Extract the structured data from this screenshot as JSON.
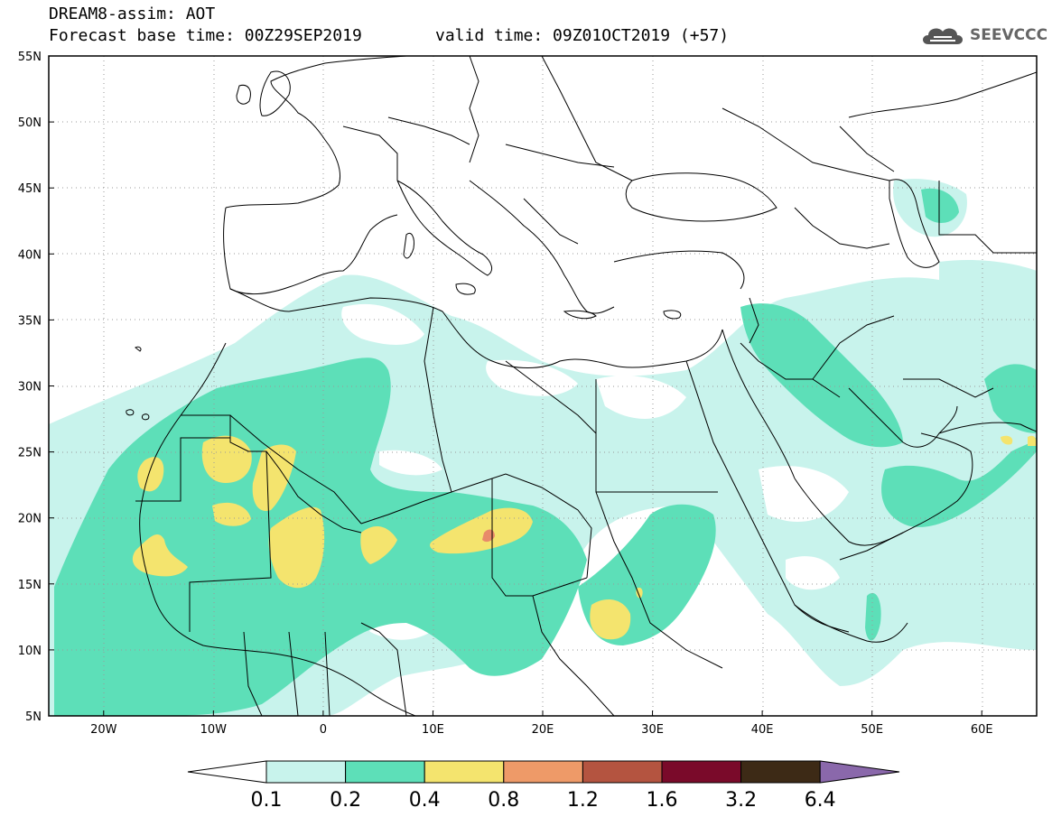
{
  "header": {
    "title": "DREAM8-assim: AOT",
    "base_time": "Forecast base time: 00Z29SEP2019",
    "valid_time": "valid time: 09Z01OCT2019 (+57)"
  },
  "logo": {
    "text": "SEEVCCC",
    "icon": "cloud-icon"
  },
  "map": {
    "lat_labels": [
      "55N",
      "50N",
      "45N",
      "40N",
      "35N",
      "30N",
      "25N",
      "20N",
      "15N",
      "10N",
      "5N"
    ],
    "lon_labels": [
      "20W",
      "10W",
      "0",
      "10E",
      "20E",
      "30E",
      "40E",
      "50E",
      "60E"
    ],
    "lon_range": [
      -25,
      65
    ],
    "lat_range": [
      5,
      55
    ],
    "grid": "dotted"
  },
  "legend": {
    "labels": [
      "0.1",
      "0.2",
      "0.4",
      "0.8",
      "1.2",
      "1.6",
      "3.2",
      "6.4"
    ],
    "colors": [
      "#ffffff",
      "#c8f3ec",
      "#5ddfb8",
      "#f4e46e",
      "#ee9a68",
      "#b45440",
      "#7a0a2a",
      "#3d2a16",
      "#8a68ab"
    ]
  },
  "colors": {
    "band1": "#c8f3ec",
    "band2": "#5ddfb8",
    "band3": "#f4e46e",
    "band4": "#e88a6a",
    "border": "#000000",
    "grid": "#9a9a9a"
  }
}
